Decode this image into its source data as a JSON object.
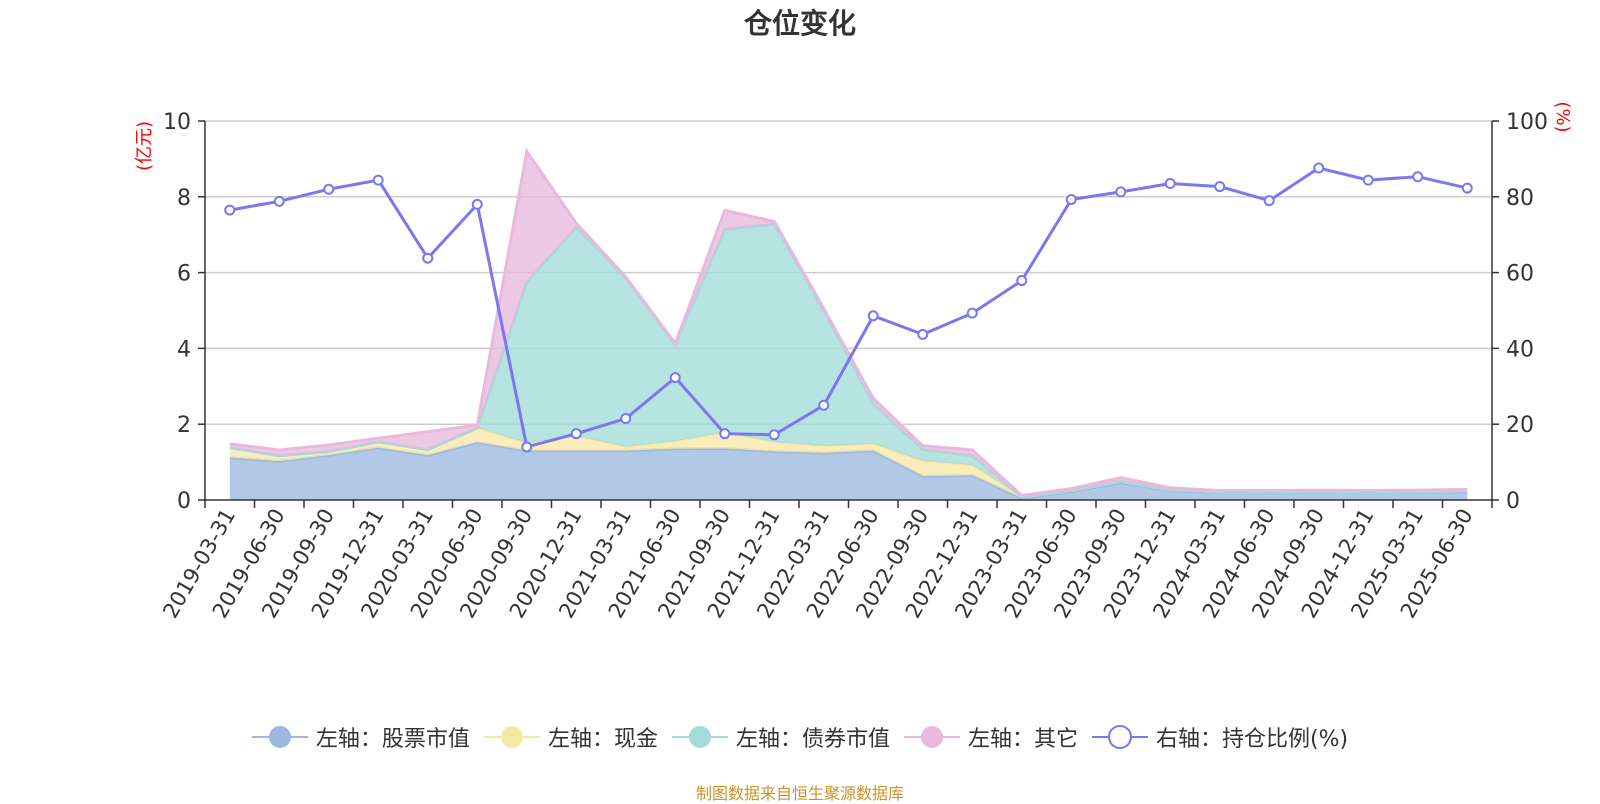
{
  "chart_data": {
    "type": "area",
    "title": "仓位变化",
    "left_axis_label": "(亿元)",
    "right_axis_label": "(%)",
    "categories": [
      "2019-03-31",
      "2019-06-30",
      "2019-09-30",
      "2019-12-31",
      "2020-03-31",
      "2020-06-30",
      "2020-09-30",
      "2020-12-31",
      "2021-03-31",
      "2021-06-30",
      "2021-09-30",
      "2021-12-31",
      "2022-03-31",
      "2022-06-30",
      "2022-09-30",
      "2022-12-31",
      "2023-03-31",
      "2023-06-30",
      "2023-09-30",
      "2023-12-31",
      "2024-03-31",
      "2024-06-30",
      "2024-09-30",
      "2024-12-31",
      "2025-03-31",
      "2025-06-30"
    ],
    "ylim_left": [
      0,
      10
    ],
    "yticks_left": [
      0,
      2,
      4,
      6,
      8,
      10
    ],
    "ylim_right": [
      0,
      100
    ],
    "yticks_right": [
      0,
      20,
      40,
      60,
      80,
      100
    ],
    "grid": true,
    "legend_position": "bottom",
    "series": [
      {
        "name": "左轴：股票市值",
        "axis": "left",
        "kind": "stacked-area",
        "color": "#9bb8e0",
        "values": [
          1.12,
          1.02,
          1.18,
          1.38,
          1.18,
          1.52,
          1.3,
          1.3,
          1.3,
          1.35,
          1.36,
          1.28,
          1.24,
          1.3,
          0.63,
          0.65,
          0.05,
          0.22,
          0.46,
          0.25,
          0.2,
          0.19,
          0.2,
          0.2,
          0.2,
          0.22
        ]
      },
      {
        "name": "左轴：现金",
        "axis": "left",
        "kind": "stacked-area",
        "color": "#f8e8a8",
        "values": [
          0.26,
          0.15,
          0.1,
          0.15,
          0.15,
          0.38,
          0.2,
          0.38,
          0.1,
          0.2,
          0.42,
          0.25,
          0.18,
          0.18,
          0.4,
          0.27,
          0.03,
          0.03,
          0.03,
          0.02,
          0.02,
          0.02,
          0.02,
          0.02,
          0.02,
          0.02
        ]
      },
      {
        "name": "左轴：债券市值",
        "axis": "left",
        "kind": "stacked-area",
        "color": "#a3dbd9",
        "values": [
          0,
          0,
          0,
          0,
          0,
          0,
          4.25,
          5.52,
          4.45,
          2.55,
          5.36,
          5.75,
          3.58,
          1.05,
          0.3,
          0.25,
          0,
          0,
          0,
          0,
          0,
          0,
          0,
          0,
          0,
          0
        ]
      },
      {
        "name": "左轴：其它",
        "axis": "left",
        "kind": "stacked-area",
        "color": "#e8b9dc",
        "values": [
          0.1,
          0.15,
          0.17,
          0.1,
          0.47,
          0.08,
          3.45,
          0.1,
          0.03,
          0.03,
          0.5,
          0.07,
          0.05,
          0.15,
          0.1,
          0.15,
          0.04,
          0.05,
          0.1,
          0.05,
          0.03,
          0.04,
          0.04,
          0.03,
          0.04,
          0.04
        ]
      },
      {
        "name": "右轴：持仓比例(%)",
        "axis": "right",
        "kind": "line",
        "color": "#7878f0",
        "values": [
          76.5,
          78.8,
          82.0,
          84.4,
          63.8,
          78.0,
          14.0,
          17.5,
          21.5,
          32.3,
          17.5,
          17.2,
          25.0,
          48.6,
          43.7,
          49.3,
          57.9,
          79.3,
          81.3,
          83.5,
          82.7,
          79.0,
          87.6,
          84.4,
          85.3,
          82.3
        ]
      }
    ]
  },
  "footer": {
    "source_text": "制图数据来自恒生聚源数据库"
  }
}
